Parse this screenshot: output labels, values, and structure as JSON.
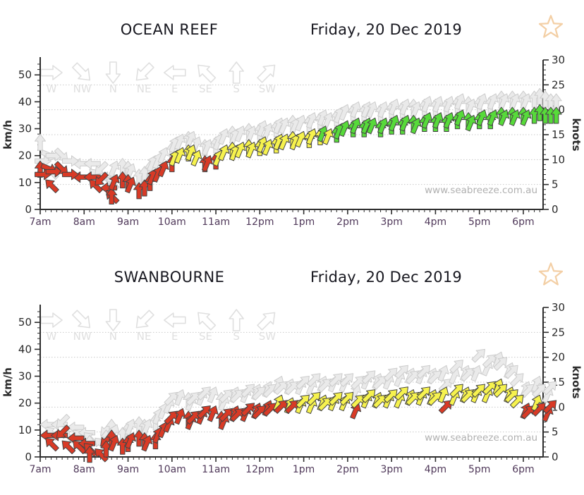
{
  "colors": {
    "wind_red": "#d93a26",
    "wind_yellow": "#f6f24e",
    "wind_green": "#57da3a",
    "arrow_stroke": "#454545",
    "gust_fill": "#eaeaea",
    "gust_stroke": "#cccccc",
    "grid": "#c9c9c9",
    "axis": "#2e2e2e",
    "time_label": "#50395a",
    "value_label": "#2b2b2b",
    "legend": "#dfdfdf",
    "watermark": "#b0b0b0",
    "star": "#f3cfa5",
    "title_text": "#17171f"
  },
  "speed_color_thresholds_kmh": {
    "red_below": 21.5,
    "yellow_below": 30.5
  },
  "chart_data": [
    {
      "type": "wind-arrows",
      "title": "OCEAN REEF",
      "date": "Friday, 20 Dec 2019",
      "favorite_icon": "star-outline-icon",
      "watermark": "www.seabreeze.com.au",
      "y_left": {
        "label": "km/h",
        "major_ticks": [
          0,
          10,
          20,
          30,
          40,
          50
        ],
        "minor_step_kmh": 2
      },
      "y_right": {
        "label": "knots",
        "major_ticks": [
          0,
          5,
          10,
          15,
          20,
          25,
          30
        ],
        "minor_step_knots": 1,
        "max_knots": 30
      },
      "x_axis": {
        "hour_labels": [
          "7am",
          "8am",
          "9am",
          "10am",
          "11am",
          "12pm",
          "1pm",
          "2pm",
          "3pm",
          "4pm",
          "5pm",
          "6pm"
        ],
        "minor_ticks_per_hour": 8
      },
      "legend_directions": [
        "W",
        "NW",
        "N",
        "NE",
        "E",
        "SE",
        "S",
        "SW"
      ],
      "gridlines_at_knots": [
        5,
        10,
        15,
        20,
        25
      ],
      "series": {
        "start_time": "7:00am",
        "interval_minutes": 7.5,
        "point_format": [
          "speed_kmh",
          "gust_kmh",
          "direction_from"
        ],
        "points": [
          [
            18,
            28,
            "S"
          ],
          [
            11,
            16,
            "SE"
          ],
          [
            13,
            18,
            "W"
          ],
          [
            14,
            19,
            "WNW"
          ],
          [
            14,
            20,
            "W"
          ],
          [
            13,
            18,
            "NW"
          ],
          [
            12,
            17,
            "E"
          ],
          [
            13,
            18,
            "W"
          ],
          [
            12,
            17,
            "E"
          ],
          [
            11,
            15,
            "SE"
          ],
          [
            9,
            13,
            "NE"
          ],
          [
            8,
            12,
            "E"
          ],
          [
            7,
            12,
            "SE"
          ],
          [
            8,
            13,
            "S"
          ],
          [
            13,
            18,
            "SSW"
          ],
          [
            14,
            19,
            "S"
          ],
          [
            13,
            18,
            "S"
          ],
          [
            12,
            17,
            "SSW"
          ],
          [
            10,
            15,
            "S"
          ],
          [
            11,
            16,
            "S"
          ],
          [
            13,
            18,
            "S"
          ],
          [
            15,
            20,
            "SSW"
          ],
          [
            16,
            21,
            "SSW"
          ],
          [
            18,
            23,
            "SSW"
          ],
          [
            20,
            25,
            "S"
          ],
          [
            22,
            27,
            "SSW"
          ],
          [
            23,
            28,
            "SSW"
          ],
          [
            24,
            29,
            "S"
          ],
          [
            24,
            29,
            "SSW"
          ],
          [
            22,
            27,
            "SSW"
          ],
          [
            20,
            26,
            "S"
          ],
          [
            20,
            26,
            "SSW"
          ],
          [
            21,
            27,
            "S"
          ],
          [
            22,
            28,
            "SSW"
          ],
          [
            24,
            30,
            "SSW"
          ],
          [
            25,
            31,
            "S"
          ],
          [
            24,
            30,
            "SSW"
          ],
          [
            25,
            31,
            "SSW"
          ],
          [
            26,
            32,
            "S"
          ],
          [
            25,
            31,
            "SSW"
          ],
          [
            26,
            32,
            "S"
          ],
          [
            27,
            33,
            "SSW"
          ],
          [
            26,
            32,
            "SSW"
          ],
          [
            27,
            33,
            "S"
          ],
          [
            28,
            34,
            "SSW"
          ],
          [
            28,
            34,
            "SSW"
          ],
          [
            29,
            35,
            "S"
          ],
          [
            28,
            34,
            "SSW"
          ],
          [
            29,
            35,
            "SSW"
          ],
          [
            29,
            35,
            "S"
          ],
          [
            30,
            36,
            "SSW"
          ],
          [
            30,
            36,
            "S"
          ],
          [
            31,
            37,
            "SSW"
          ],
          [
            30,
            36,
            "SSW"
          ],
          [
            31,
            37,
            "S"
          ],
          [
            32,
            38,
            "SSW"
          ],
          [
            33,
            39,
            "SSW"
          ],
          [
            33,
            39,
            "S"
          ],
          [
            34,
            40,
            "SSW"
          ],
          [
            33,
            39,
            "S"
          ],
          [
            34,
            40,
            "SSW"
          ],
          [
            34,
            40,
            "SSW"
          ],
          [
            33,
            39,
            "S"
          ],
          [
            34,
            40,
            "SSW"
          ],
          [
            34,
            40,
            "S"
          ],
          [
            35,
            41,
            "SSW"
          ],
          [
            34,
            40,
            "S"
          ],
          [
            35,
            41,
            "SSW"
          ],
          [
            35,
            41,
            "S"
          ],
          [
            34,
            40,
            "SSW"
          ],
          [
            35,
            41,
            "S"
          ],
          [
            36,
            42,
            "SSW"
          ],
          [
            35,
            41,
            "S"
          ],
          [
            36,
            42,
            "SSW"
          ],
          [
            35,
            41,
            "S"
          ],
          [
            36,
            42,
            "SSW"
          ],
          [
            36,
            42,
            "S"
          ],
          [
            37,
            43,
            "SSW"
          ],
          [
            36,
            42,
            "S"
          ],
          [
            35,
            41,
            "SSW"
          ],
          [
            36,
            42,
            "S"
          ],
          [
            37,
            43,
            "SSW"
          ],
          [
            36,
            42,
            "S"
          ],
          [
            37,
            43,
            "SSW"
          ],
          [
            38,
            44,
            "S"
          ],
          [
            37,
            43,
            "SSW"
          ],
          [
            38,
            44,
            "S"
          ],
          [
            37,
            43,
            "SSW"
          ],
          [
            38,
            44,
            "S"
          ],
          [
            37,
            43,
            "SSW"
          ],
          [
            38,
            44,
            "S"
          ],
          [
            39,
            45,
            "S"
          ],
          [
            38,
            44,
            "S"
          ],
          [
            38,
            43,
            "S"
          ],
          [
            38,
            43,
            "S"
          ]
        ]
      }
    },
    {
      "type": "wind-arrows",
      "title": "SWANBOURNE",
      "date": "Friday, 20 Dec 2019",
      "favorite_icon": "star-outline-icon",
      "watermark": "www.seabreeze.com.au",
      "y_left": {
        "label": "km/h",
        "major_ticks": [
          0,
          10,
          20,
          30,
          40,
          50
        ],
        "minor_step_kmh": 2
      },
      "y_right": {
        "label": "knots",
        "major_ticks": [
          0,
          5,
          10,
          15,
          20,
          25,
          30
        ],
        "minor_step_knots": 1,
        "max_knots": 30
      },
      "x_axis": {
        "hour_labels": [
          "7am",
          "8am",
          "9am",
          "10am",
          "11am",
          "12pm",
          "1pm",
          "2pm",
          "3pm",
          "4pm",
          "5pm",
          "6pm"
        ],
        "minor_ticks_per_hour": 8
      },
      "legend_directions": [
        "W",
        "NW",
        "N",
        "NE",
        "E",
        "SE",
        "S",
        "SW"
      ],
      "gridlines_at_knots": [
        5,
        10,
        15,
        20,
        25
      ],
      "series": {
        "start_time": "7:00am",
        "interval_minutes": 7.5,
        "point_format": [
          "speed_kmh",
          "gust_kmh",
          "direction_from"
        ],
        "points": [
          [
            8,
            12,
            "E"
          ],
          [
            7,
            11,
            "SE"
          ],
          [
            8,
            12,
            "E"
          ],
          [
            7,
            11,
            "NE"
          ],
          [
            6,
            10,
            "SE"
          ],
          [
            7,
            11,
            "E"
          ],
          [
            6,
            10,
            "SE"
          ],
          [
            5,
            9,
            "E"
          ],
          [
            5,
            9,
            "SE"
          ],
          [
            4,
            8,
            "S"
          ],
          [
            3,
            7,
            "SE"
          ],
          [
            4,
            8,
            "NE"
          ],
          [
            6,
            10,
            "S"
          ],
          [
            10,
            14,
            "S"
          ],
          [
            8,
            12,
            "SSW"
          ],
          [
            7,
            11,
            "S"
          ],
          [
            8,
            13,
            "S"
          ],
          [
            9,
            14,
            "SSW"
          ],
          [
            10,
            15,
            "S"
          ],
          [
            9,
            14,
            "S"
          ],
          [
            8,
            14,
            "SSW"
          ],
          [
            9,
            16,
            "S"
          ],
          [
            11,
            18,
            "SSW"
          ],
          [
            13,
            20,
            "SSW"
          ],
          [
            15,
            22,
            "SSW"
          ],
          [
            17,
            24,
            "SW"
          ],
          [
            18,
            25,
            "SSW"
          ],
          [
            17,
            24,
            "S"
          ],
          [
            16,
            23,
            "SSW"
          ],
          [
            17,
            24,
            "SW"
          ],
          [
            18,
            25,
            "SSW"
          ],
          [
            19,
            26,
            "SW"
          ],
          [
            19,
            26,
            "SSW"
          ],
          [
            17,
            24,
            "S"
          ],
          [
            16,
            23,
            "SSW"
          ],
          [
            18,
            25,
            "SW"
          ],
          [
            19,
            26,
            "SSW"
          ],
          [
            18,
            25,
            "SW"
          ],
          [
            19,
            26,
            "SSW"
          ],
          [
            20,
            27,
            "SW"
          ],
          [
            20,
            27,
            "SSW"
          ],
          [
            19,
            26,
            "SW"
          ],
          [
            21,
            28,
            "SSW"
          ],
          [
            20,
            27,
            "SW"
          ],
          [
            23,
            30,
            "SSW"
          ],
          [
            21,
            28,
            "SW"
          ],
          [
            22,
            29,
            "SSW"
          ],
          [
            21,
            28,
            "SW"
          ],
          [
            22,
            29,
            "SSW"
          ],
          [
            23,
            30,
            "SW"
          ],
          [
            22,
            29,
            "SSW"
          ],
          [
            24,
            31,
            "SW"
          ],
          [
            23,
            30,
            "SSW"
          ],
          [
            22,
            29,
            "SW"
          ],
          [
            23,
            30,
            "SSW"
          ],
          [
            24,
            31,
            "SW"
          ],
          [
            23,
            30,
            "SSW"
          ],
          [
            24,
            31,
            "SW"
          ],
          [
            20,
            27,
            "SSW"
          ],
          [
            23,
            30,
            "SW"
          ],
          [
            24,
            31,
            "SSW"
          ],
          [
            25,
            32,
            "SW"
          ],
          [
            24,
            31,
            "SSW"
          ],
          [
            23,
            30,
            "SW"
          ],
          [
            24,
            31,
            "SSW"
          ],
          [
            25,
            33,
            "SW"
          ],
          [
            24,
            32,
            "SSW"
          ],
          [
            26,
            34,
            "SW"
          ],
          [
            25,
            33,
            "SSW"
          ],
          [
            24,
            32,
            "SW"
          ],
          [
            25,
            33,
            "SSW"
          ],
          [
            26,
            34,
            "SW"
          ],
          [
            25,
            33,
            "SSW"
          ],
          [
            24,
            32,
            "SW"
          ],
          [
            26,
            34,
            "SSW"
          ],
          [
            21,
            29,
            "SW"
          ],
          [
            25,
            33,
            "SSW"
          ],
          [
            27,
            36,
            "SW"
          ],
          [
            26,
            34,
            "SSW"
          ],
          [
            25,
            33,
            "SW"
          ],
          [
            26,
            34,
            "SSW"
          ],
          [
            27,
            40,
            "SW"
          ],
          [
            26,
            36,
            "SSW"
          ],
          [
            28,
            38,
            "SW"
          ],
          [
            29,
            39,
            "SSW"
          ],
          [
            27,
            37,
            "SW"
          ],
          [
            26,
            35,
            "SSW"
          ],
          [
            25,
            34,
            "SW"
          ],
          [
            23,
            31,
            "SW"
          ],
          [
            20,
            28,
            "SSW"
          ],
          [
            19,
            27,
            "SW"
          ],
          [
            23,
            30,
            "SSW"
          ],
          [
            20,
            27,
            "SW"
          ],
          [
            19,
            26,
            "SSW"
          ],
          [
            21,
            28,
            "SW"
          ]
        ]
      }
    }
  ]
}
